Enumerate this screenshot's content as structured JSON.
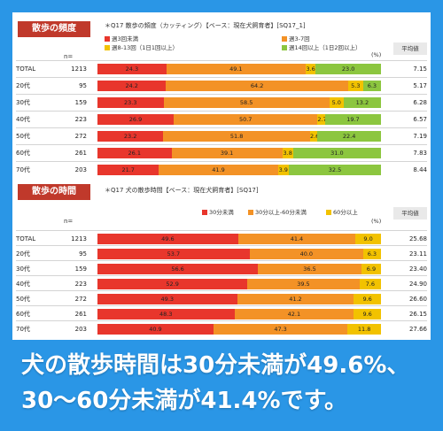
{
  "caption": {
    "line1": "犬の散歩時間は30分未満が49.6%、",
    "line2": "30～60分未満が41.4%です。"
  },
  "sections": [
    {
      "tag": "散歩の頻度",
      "question": "＊Q17 散歩の頻度（カッティング）【ベース：現在犬飼育者】[SQ17_1]",
      "n_header": "n=",
      "pct_label": "(%)",
      "avg_header": "平均値",
      "legend": [
        {
          "name": "週3回未満",
          "color": "#e8362c"
        },
        {
          "name": "週3-7回",
          "color": "#f39226"
        },
        {
          "name": "週8-13回（1日1回以上）",
          "color": "#f2c200"
        },
        {
          "name": "週14回以上（1日2回以上）",
          "color": "#8cc63f"
        }
      ]
    },
    {
      "tag": "散歩の時間",
      "question": "＊Q17 犬の散歩時間【ベース：現在犬飼育者】[SQ17]",
      "n_header": "n=",
      "pct_label": "(%)",
      "avg_header": "平均値",
      "legend": [
        {
          "name": "30分未満",
          "color": "#e8362c"
        },
        {
          "name": "30分以上-60分未満",
          "color": "#f39226"
        },
        {
          "name": "60分以上",
          "color": "#f2c200"
        }
      ]
    }
  ],
  "chart_data": [
    {
      "type": "bar",
      "stacked": true,
      "orientation": "horizontal",
      "title": "＊Q17 散歩の頻度（カッティング）【ベース：現在犬飼育者】[SQ17_1]",
      "unit": "%",
      "categories": [
        "TOTAL",
        "20代",
        "30代",
        "40代",
        "50代",
        "60代",
        "70代"
      ],
      "n": [
        1213,
        95,
        159,
        223,
        272,
        261,
        203
      ],
      "average": [
        "7.15",
        "5.17",
        "6.28",
        "6.57",
        "7.19",
        "7.83",
        "8.44"
      ],
      "series": [
        {
          "name": "週3回未満",
          "color": "#e8362c",
          "values": [
            24.3,
            24.2,
            23.3,
            26.9,
            23.2,
            26.1,
            21.7
          ]
        },
        {
          "name": "週3-7回",
          "color": "#f39226",
          "values": [
            49.1,
            64.2,
            58.5,
            50.7,
            51.8,
            39.1,
            41.9
          ]
        },
        {
          "name": "週8-13回（1日1回以上）",
          "color": "#f2c200",
          "values": [
            3.6,
            5.3,
            5.0,
            2.7,
            2.6,
            3.8,
            3.9
          ]
        },
        {
          "name": "週14回以上（1日2回以上）",
          "color": "#8cc63f",
          "values": [
            23.0,
            6.3,
            13.2,
            19.7,
            22.4,
            31.0,
            32.5
          ]
        }
      ],
      "xlim": [
        0,
        100
      ],
      "legend_position": "top"
    },
    {
      "type": "bar",
      "stacked": true,
      "orientation": "horizontal",
      "title": "＊Q17 犬の散歩時間【ベース：現在犬飼育者】[SQ17]",
      "unit": "%",
      "categories": [
        "TOTAL",
        "20代",
        "30代",
        "40代",
        "50代",
        "60代",
        "70代"
      ],
      "n": [
        1213,
        95,
        159,
        223,
        272,
        261,
        203
      ],
      "average": [
        "25.68",
        "23.11",
        "23.40",
        "24.90",
        "26.60",
        "26.15",
        "27.66"
      ],
      "series": [
        {
          "name": "30分未満",
          "color": "#e8362c",
          "values": [
            49.6,
            53.7,
            56.6,
            52.9,
            49.3,
            48.3,
            40.9
          ]
        },
        {
          "name": "30分以上-60分未満",
          "color": "#f39226",
          "values": [
            41.4,
            40.0,
            36.5,
            39.5,
            41.2,
            42.1,
            47.3
          ]
        },
        {
          "name": "60分以上",
          "color": "#f2c200",
          "values": [
            9.0,
            6.3,
            6.9,
            7.6,
            9.6,
            9.6,
            11.8
          ]
        }
      ],
      "xlim": [
        0,
        100
      ],
      "legend_position": "top"
    }
  ]
}
